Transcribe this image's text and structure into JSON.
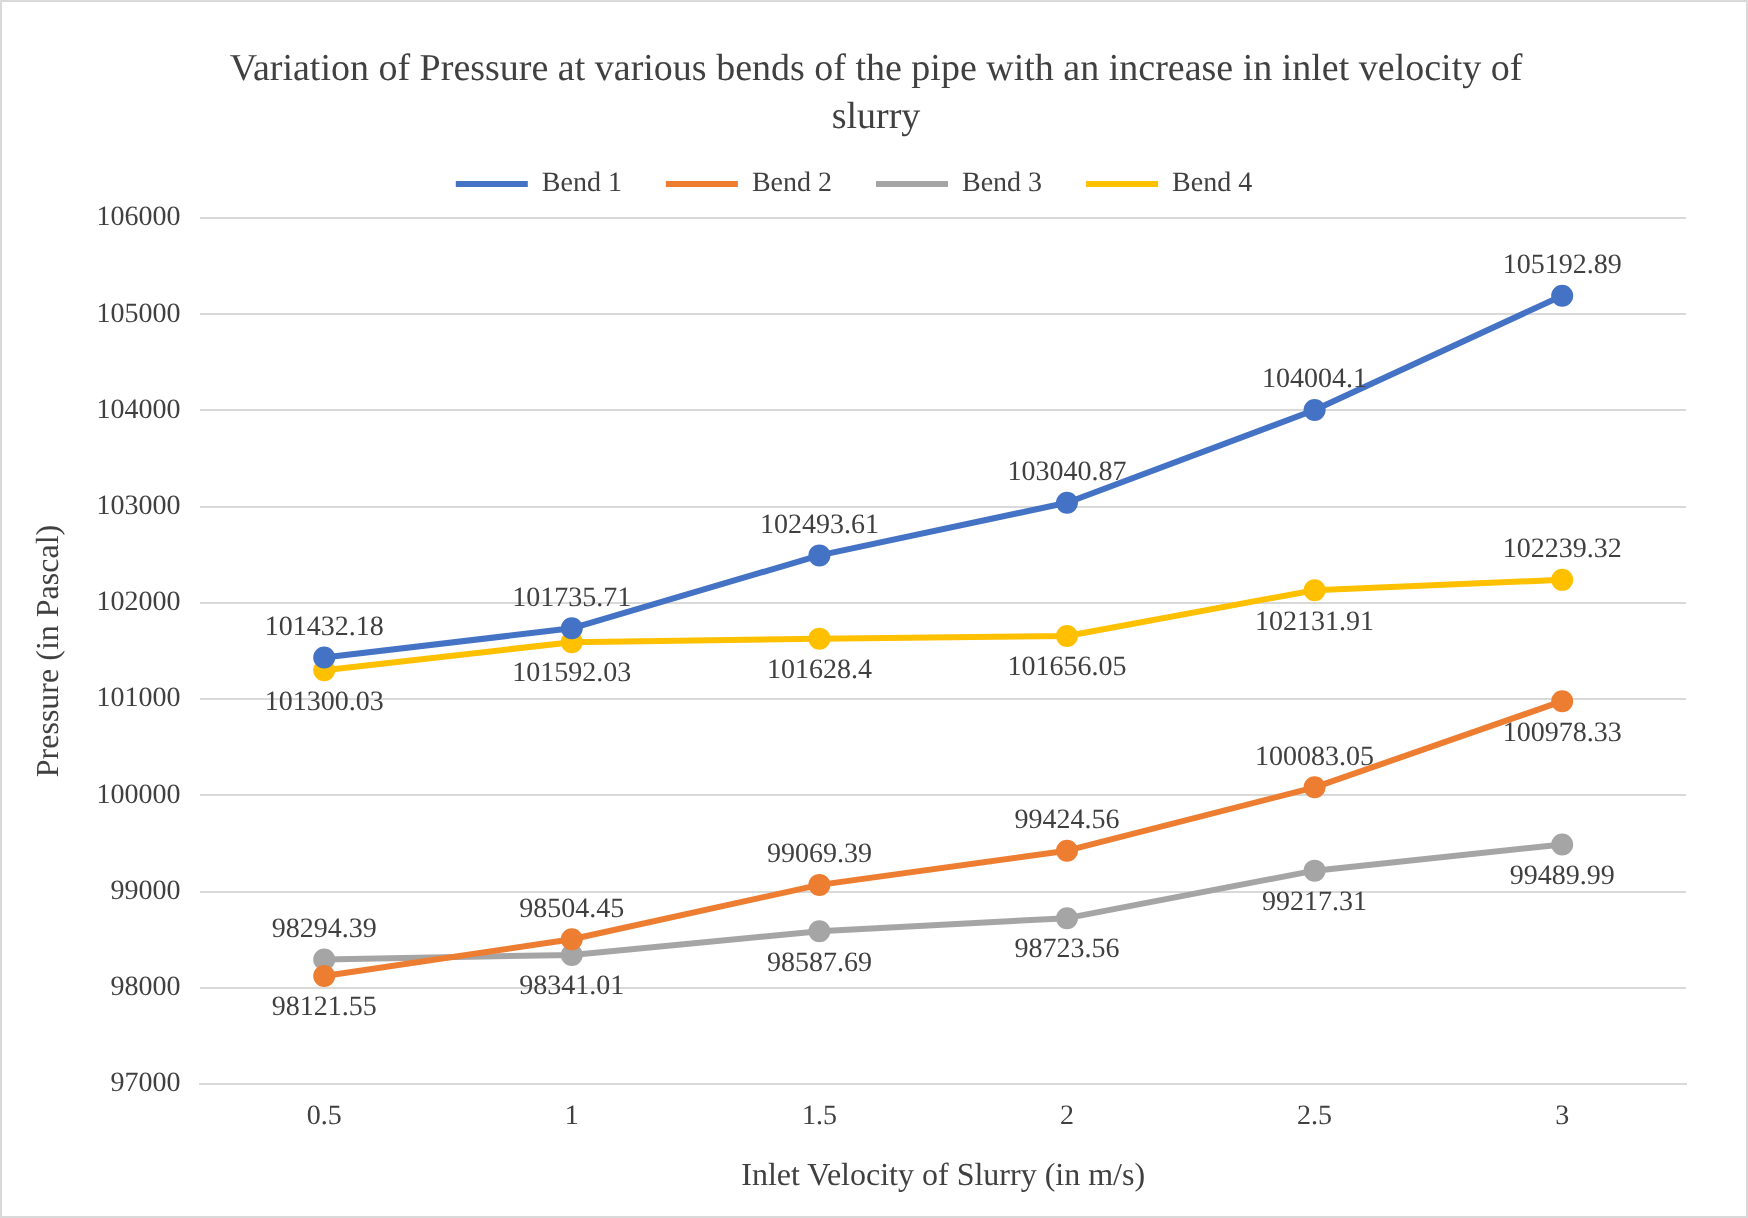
{
  "chart_data": {
    "type": "line",
    "title": "Variation of Pressure at various bends of the pipe with an increase in inlet velocity of slurry",
    "xlabel": "Inlet Velocity of Slurry (in m/s)",
    "ylabel": "Pressure (in Pascal)",
    "categories": [
      "0.5",
      "1",
      "1.5",
      "2",
      "2.5",
      "3"
    ],
    "series": [
      {
        "name": "Bend 1",
        "color": "#4472c4",
        "values": [
          101432.18,
          101735.71,
          102493.61,
          103040.87,
          104004.1,
          105192.89
        ]
      },
      {
        "name": "Bend 2",
        "color": "#ed7d31",
        "values": [
          98121.55,
          98504.45,
          99069.39,
          99424.56,
          100083.05,
          100978.33
        ]
      },
      {
        "name": "Bend 3",
        "color": "#a5a5a5",
        "values": [
          98294.39,
          98341.01,
          98587.69,
          98723.56,
          99217.31,
          99489.99
        ]
      },
      {
        "name": "Bend 4",
        "color": "#ffc000",
        "values": [
          101300.03,
          101592.03,
          101628.4,
          101656.05,
          102131.91,
          102239.32
        ]
      }
    ],
    "ylim": [
      97000,
      106000
    ],
    "yticks": [
      97000,
      98000,
      99000,
      100000,
      101000,
      102000,
      103000,
      104000,
      105000,
      106000
    ],
    "grid": "y",
    "legend": "top",
    "marker": "circle",
    "line_style": "solid",
    "data_labels": true
  }
}
